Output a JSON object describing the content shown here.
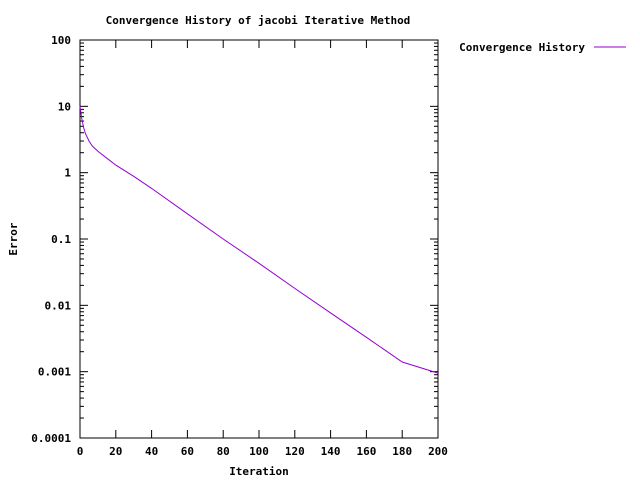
{
  "chart_data": {
    "type": "line",
    "title": "Convergence History of jacobi Iterative Method",
    "xlabel": "Iteration",
    "ylabel": "Error",
    "xlim": [
      0,
      200
    ],
    "ylim": [
      0.0001,
      100
    ],
    "yscale": "log",
    "grid": false,
    "legend_position": "outside-right",
    "x_ticks": [
      0,
      20,
      40,
      60,
      80,
      100,
      120,
      140,
      160,
      180,
      200
    ],
    "x_tick_labels": [
      "0",
      "20",
      "40",
      "60",
      "80",
      "100",
      "120",
      "140",
      "160",
      "180",
      "200"
    ],
    "y_ticks": [
      0.0001,
      0.001,
      0.01,
      0.1,
      1,
      10,
      100
    ],
    "y_tick_labels": [
      "0.0001",
      "0.001",
      "0.01",
      "0.1",
      "1",
      "10",
      "100"
    ],
    "series": [
      {
        "name": "Convergence History",
        "color": "#9400d3",
        "x": [
          0,
          1,
          2,
          3,
          5,
          7,
          10,
          15,
          20,
          30,
          40,
          60,
          80,
          100,
          120,
          140,
          160,
          180,
          200
        ],
        "y": [
          10,
          6.5,
          4.8,
          3.9,
          3.0,
          2.5,
          2.1,
          1.65,
          1.3,
          0.88,
          0.58,
          0.24,
          0.1,
          0.043,
          0.018,
          0.0077,
          0.0033,
          0.0014,
          0.00095
        ]
      }
    ]
  }
}
